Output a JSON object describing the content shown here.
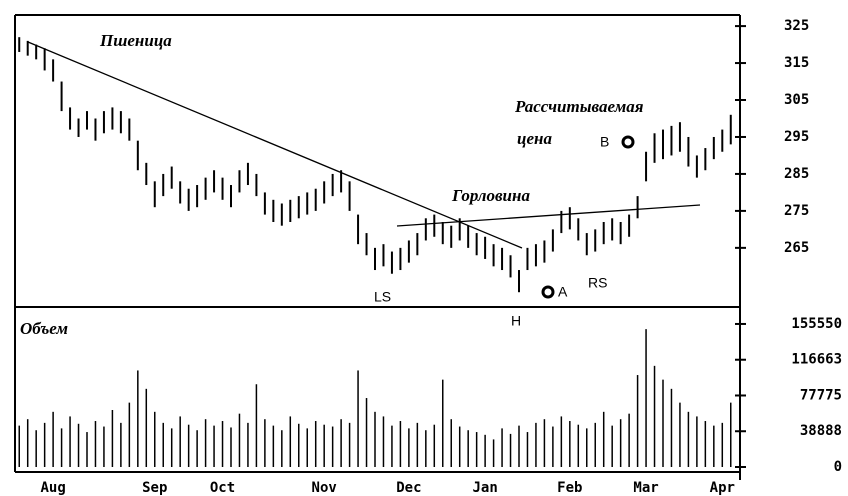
{
  "chart_data": [
    {
      "type": "ohlc",
      "title": "Пшеница",
      "high": [
        322,
        321,
        320,
        319,
        316,
        310,
        303,
        300,
        302,
        300,
        302,
        303,
        302,
        300,
        294,
        288,
        283,
        285,
        287,
        283,
        281,
        282,
        284,
        286,
        284,
        282,
        286,
        288,
        285,
        280,
        278,
        277,
        278,
        279,
        280,
        281,
        283,
        285,
        286,
        283,
        274,
        269,
        265,
        266,
        264,
        265,
        267,
        269,
        273,
        274,
        272,
        271,
        273,
        271,
        269,
        268,
        266,
        265,
        263,
        259,
        265,
        266,
        267,
        270,
        275,
        276,
        273,
        269,
        270,
        272,
        273,
        272,
        274,
        279,
        291,
        296,
        297,
        298,
        299,
        295,
        290,
        292,
        295,
        297,
        301
      ],
      "low": [
        318,
        317,
        316,
        313,
        310,
        302,
        297,
        295,
        297,
        294,
        296,
        297,
        296,
        294,
        286,
        282,
        276,
        279,
        281,
        277,
        275,
        276,
        278,
        280,
        278,
        276,
        280,
        282,
        279,
        274,
        272,
        271,
        272,
        273,
        274,
        275,
        277,
        279,
        280,
        275,
        266,
        263,
        259,
        260,
        258,
        259,
        261,
        263,
        267,
        268,
        266,
        265,
        267,
        265,
        263,
        262,
        260,
        259,
        257,
        253,
        259,
        260,
        261,
        264,
        269,
        270,
        267,
        263,
        264,
        266,
        267,
        266,
        268,
        273,
        283,
        288,
        289,
        290,
        291,
        287,
        284,
        286,
        289,
        291,
        293
      ],
      "ylim": [
        249,
        328
      ],
      "yticks": [
        265,
        275,
        285,
        295,
        305,
        315,
        325
      ],
      "annotations": [
        "Рассчитываемая",
        "цена",
        "Горловина",
        "B",
        "A",
        "LS",
        "RS",
        "H"
      ]
    },
    {
      "type": "bar",
      "title": "Объем",
      "categories": [
        null,
        null,
        null,
        null,
        "Aug",
        null,
        null,
        null,
        null,
        null,
        null,
        null,
        null,
        null,
        null,
        null,
        "Sep",
        null,
        null,
        null,
        null,
        null,
        null,
        null,
        "Oct",
        null,
        null,
        null,
        null,
        null,
        null,
        null,
        null,
        null,
        null,
        null,
        "Nov",
        null,
        null,
        null,
        null,
        null,
        null,
        null,
        null,
        null,
        "Dec",
        null,
        null,
        null,
        null,
        null,
        null,
        null,
        null,
        "Jan",
        null,
        null,
        null,
        null,
        null,
        null,
        null,
        null,
        null,
        "Feb",
        null,
        null,
        null,
        null,
        null,
        null,
        null,
        null,
        "Mar",
        null,
        null,
        null,
        null,
        null,
        null,
        null,
        null,
        "Apr",
        null
      ],
      "values": [
        45000,
        52000,
        40000,
        48000,
        60000,
        42000,
        55000,
        47000,
        38000,
        50000,
        44000,
        62000,
        48000,
        70000,
        105000,
        85000,
        60000,
        48000,
        42000,
        55000,
        46000,
        40000,
        52000,
        45000,
        50000,
        43000,
        58000,
        48000,
        90000,
        52000,
        45000,
        40000,
        55000,
        47000,
        42000,
        50000,
        46000,
        44000,
        52000,
        48000,
        105000,
        75000,
        60000,
        55000,
        45000,
        50000,
        42000,
        48000,
        40000,
        46000,
        95000,
        52000,
        44000,
        40000,
        38000,
        35000,
        30000,
        42000,
        36000,
        45000,
        38000,
        48000,
        52000,
        44000,
        55000,
        50000,
        46000,
        42000,
        48000,
        60000,
        45000,
        52000,
        58000,
        100000,
        150000,
        110000,
        95000,
        85000,
        70000,
        60000,
        55000,
        50000,
        45000,
        48000,
        70000
      ],
      "ylim": [
        0,
        174000
      ],
      "yticks": [
        0,
        38888,
        77775,
        116663,
        155550
      ]
    }
  ]
}
